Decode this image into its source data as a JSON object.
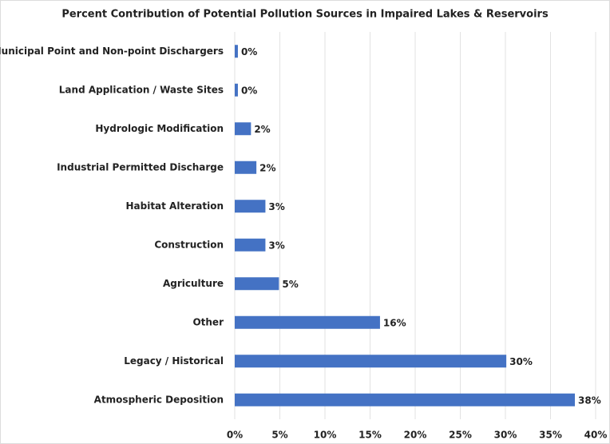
{
  "chart_data": {
    "type": "hbar",
    "title": "Percent Contribution of Potential Pollution Sources in Impaired Lakes & Reservoirs",
    "categories": [
      "Municipal Point and Non-point Dischargers",
      "Land Application / Waste Sites",
      "Hydrologic Modification",
      "Industrial Permitted Discharge",
      "Habitat Alteration",
      "Construction",
      "Agriculture",
      "Other",
      "Legacy / Historical",
      "Atmospheric Deposition"
    ],
    "values": [
      0.35,
      0.35,
      1.8,
      2.4,
      3.4,
      3.4,
      4.9,
      16.1,
      30.1,
      37.7
    ],
    "value_labels": [
      "0%",
      "0%",
      "2%",
      "2%",
      "3%",
      "3%",
      "5%",
      "16%",
      "30%",
      "38%"
    ],
    "color": "#4472c4",
    "xlim": [
      0,
      40
    ],
    "xticks": [
      {
        "value": 0,
        "label": "0%"
      },
      {
        "value": 5,
        "label": "5%"
      },
      {
        "value": 10,
        "label": "10%"
      },
      {
        "value": 15,
        "label": "15%"
      },
      {
        "value": 20,
        "label": "20%"
      },
      {
        "value": 25,
        "label": "25%"
      },
      {
        "value": 30,
        "label": "30%"
      },
      {
        "value": 35,
        "label": "35%"
      },
      {
        "value": 40,
        "label": "40%"
      }
    ],
    "grid": true
  }
}
